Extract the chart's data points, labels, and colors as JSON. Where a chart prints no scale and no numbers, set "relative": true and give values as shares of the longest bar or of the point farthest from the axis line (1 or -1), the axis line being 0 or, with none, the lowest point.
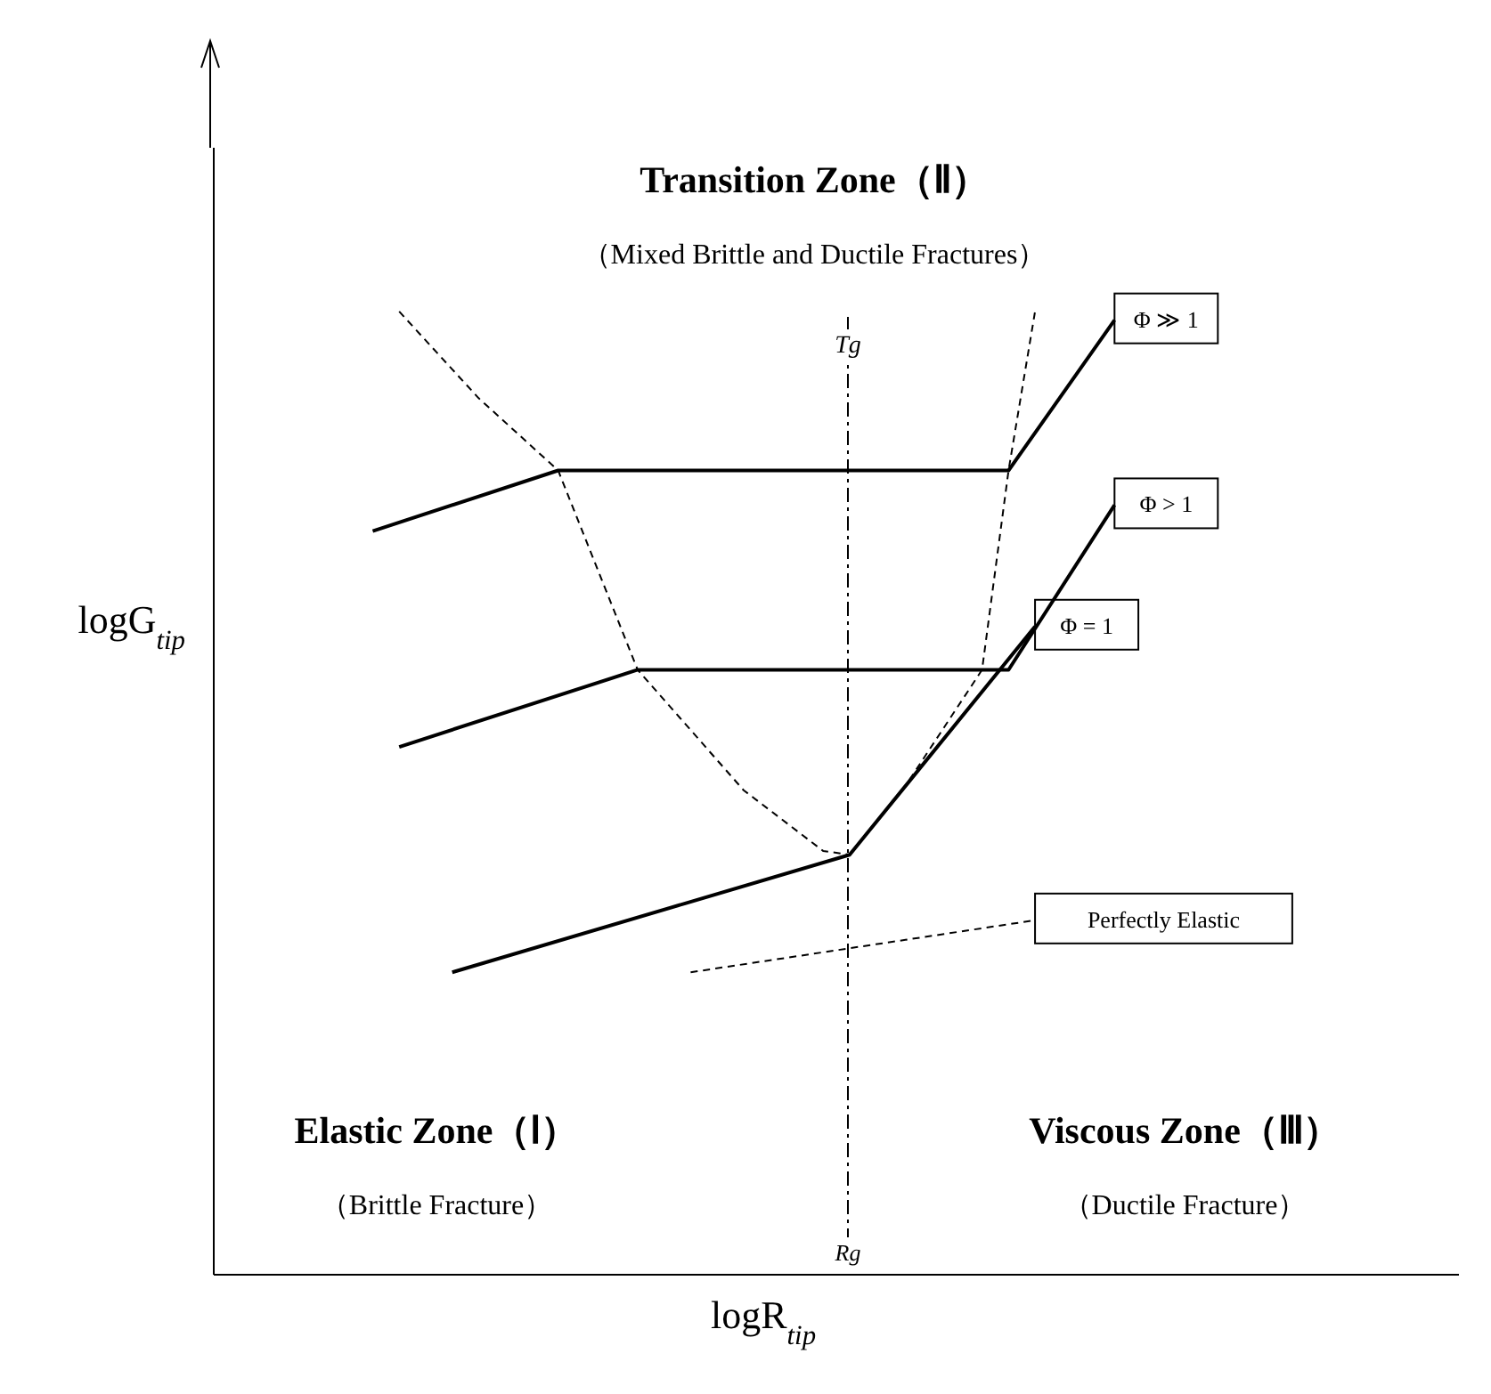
{
  "chart_data": {
    "type": "line",
    "relative": true,
    "xlabel": "logR$_{tip}$",
    "ylabel": "logG$_{tip}$",
    "tick_labels": false,
    "grid": false,
    "legend": false,
    "marker": "none",
    "categories": [
      null,
      null,
      null,
      null,
      null,
      null,
      null,
      null,
      null,
      null,
      null,
      null,
      null,
      null,
      null,
      null,
      null,
      null,
      null,
      null,
      null,
      null,
      null,
      null,
      null,
      null,
      null,
      null,
      null,
      null,
      null,
      null,
      null,
      null,
      null,
      null,
      null,
      null,
      null,
      null,
      null,
      null,
      null,
      null,
      null,
      null,
      null,
      null
    ],
    "series": [
      {
        "name": "Φ ≫ 1",
        "color": "#000000",
        "line_style": "solid",
        "values": [
          null,
          null,
          null,
          null,
          null,
          null,
          0.772,
          null,
          null,
          null,
          null,
          null,
          null,
          0.835,
          null,
          null,
          null,
          null,
          null,
          null,
          null,
          null,
          null,
          null,
          null,
          null,
          null,
          null,
          null,
          null,
          0.835,
          null,
          null,
          null,
          0.991,
          null,
          null,
          null,
          null,
          null,
          null,
          null,
          null,
          null,
          null,
          null,
          null,
          null
        ]
      },
      {
        "name": "Φ > 1",
        "color": "#000000",
        "line_style": "solid",
        "values": [
          null,
          null,
          null,
          null,
          null,
          null,
          null,
          0.548,
          null,
          null,
          null,
          null,
          null,
          null,
          null,
          null,
          0.628,
          null,
          null,
          null,
          null,
          null,
          null,
          null,
          null,
          null,
          null,
          null,
          null,
          null,
          0.628,
          null,
          null,
          null,
          0.799,
          null,
          null,
          null,
          null,
          null,
          null,
          null,
          null,
          null,
          null,
          null,
          null,
          null
        ]
      },
      {
        "name": "Φ = 1",
        "color": "#000000",
        "line_style": "solid",
        "values": [
          null,
          null,
          null,
          null,
          null,
          null,
          null,
          null,
          null,
          0.314,
          null,
          null,
          null,
          null,
          null,
          null,
          null,
          null,
          null,
          null,
          null,
          null,
          null,
          null,
          0.436,
          null,
          null,
          null,
          null,
          null,
          null,
          0.673,
          null,
          null,
          null,
          null,
          null,
          null,
          null,
          null,
          null,
          null,
          null,
          null,
          null,
          null,
          null,
          null
        ]
      },
      {
        "name": "Perfectly Elastic",
        "color": "#000000",
        "line_style": "dashed",
        "values": [
          null,
          null,
          null,
          null,
          null,
          null,
          null,
          null,
          null,
          null,
          null,
          null,
          null,
          null,
          null,
          null,
          null,
          null,
          0.314,
          null,
          null,
          null,
          null,
          null,
          null,
          null,
          null,
          null,
          null,
          null,
          null,
          0.368,
          null,
          null,
          null,
          null,
          null,
          null,
          null,
          null,
          null,
          null,
          null,
          null,
          null,
          null,
          null,
          null
        ]
      },
      {
        "color": "#000000",
        "line_style": "dashed",
        "values": [
          null,
          null,
          null,
          null,
          null,
          null,
          null,
          1.0,
          null,
          null,
          0.91,
          null,
          null,
          0.835,
          null,
          null,
          0.628,
          null,
          null,
          null,
          0.503,
          null,
          null,
          0.44,
          0.436,
          null,
          0.503,
          null,
          null,
          0.628,
          0.835,
          1.0,
          null,
          null,
          null,
          null,
          null,
          null,
          null,
          null,
          null,
          null,
          null,
          null,
          null,
          null,
          null,
          null
        ]
      }
    ],
    "annotations": [
      "Transition Zone（Ⅱ）",
      "（Mixed Brittle and Ductile Fractures）",
      "Elastic Zone（Ⅰ）",
      "（Brittle Fracture）",
      "Viscous Zone（Ⅲ）",
      "（Ductile Fracture）",
      "Rg",
      "Tg"
    ]
  }
}
